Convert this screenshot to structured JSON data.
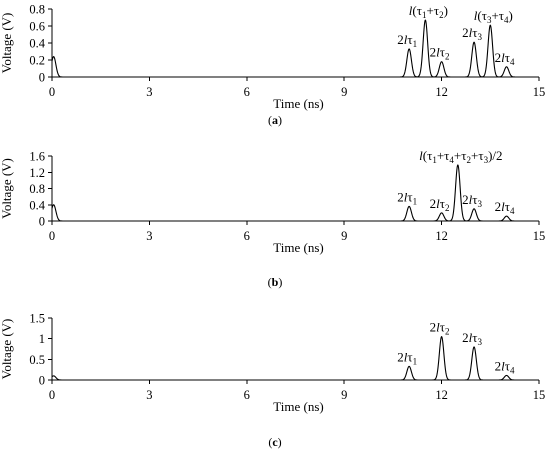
{
  "chart_data": [
    {
      "type": "line",
      "caption": "(a)",
      "xlabel": "Time (ns)",
      "ylabel": "Voltage (V)",
      "xlim": [
        0,
        15
      ],
      "ylim": [
        0,
        0.8
      ],
      "xticks": [
        "0",
        "3",
        "6",
        "9",
        "12",
        "15"
      ],
      "yticks": [
        "0",
        "0.2",
        "0.4",
        "0.6",
        "0.8"
      ],
      "peaks": [
        {
          "x": 0.05,
          "y": 0.24,
          "w": 0.07,
          "label": ""
        },
        {
          "x": 11.0,
          "y": 0.33,
          "w": 0.07,
          "label": "2lτ1"
        },
        {
          "x": 11.5,
          "y": 0.67,
          "w": 0.07,
          "label": "l(τ1+τ2)"
        },
        {
          "x": 12.0,
          "y": 0.18,
          "w": 0.07,
          "label": "2lτ2"
        },
        {
          "x": 13.0,
          "y": 0.41,
          "w": 0.07,
          "label": "2lτ3"
        },
        {
          "x": 13.5,
          "y": 0.61,
          "w": 0.07,
          "label": "l(τ3+τ4)"
        },
        {
          "x": 14.0,
          "y": 0.12,
          "w": 0.07,
          "label": "2lτ4"
        }
      ]
    },
    {
      "type": "line",
      "caption": "(b)",
      "xlabel": "Time (ns)",
      "ylabel": "Voltage (V)",
      "xlim": [
        0,
        15
      ],
      "ylim": [
        0,
        1.6
      ],
      "xticks": [
        "0",
        "3",
        "6",
        "9",
        "12",
        "15"
      ],
      "yticks": [
        "0",
        "0.4",
        "0.8",
        "1.2",
        "1.6"
      ],
      "peaks": [
        {
          "x": 0.05,
          "y": 0.4,
          "w": 0.07,
          "label": ""
        },
        {
          "x": 11.0,
          "y": 0.36,
          "w": 0.07,
          "label": "2lτ1"
        },
        {
          "x": 12.0,
          "y": 0.2,
          "w": 0.07,
          "label": "2lτ2"
        },
        {
          "x": 12.5,
          "y": 1.38,
          "w": 0.07,
          "label": "l(τ1+τ4+τ2+τ3)/2"
        },
        {
          "x": 13.0,
          "y": 0.3,
          "w": 0.07,
          "label": "2lτ3"
        },
        {
          "x": 14.0,
          "y": 0.12,
          "w": 0.07,
          "label": "2lτ4"
        }
      ]
    },
    {
      "type": "line",
      "caption": "(c)",
      "xlabel": "Time (ns)",
      "ylabel": "Voltage (V)",
      "xlim": [
        0,
        15
      ],
      "ylim": [
        0,
        1.5
      ],
      "xticks": [
        "0",
        "3",
        "6",
        "9",
        "12",
        "15"
      ],
      "yticks": [
        "0",
        "0.5",
        "1",
        "1.5"
      ],
      "peaks": [
        {
          "x": 0.05,
          "y": 0.1,
          "w": 0.07,
          "label": ""
        },
        {
          "x": 11.0,
          "y": 0.33,
          "w": 0.07,
          "label": "2lτ1"
        },
        {
          "x": 12.0,
          "y": 1.05,
          "w": 0.07,
          "label": "2lτ2"
        },
        {
          "x": 13.0,
          "y": 0.8,
          "w": 0.07,
          "label": "2lτ3"
        },
        {
          "x": 14.0,
          "y": 0.11,
          "w": 0.07,
          "label": "2lτ4"
        }
      ]
    }
  ]
}
